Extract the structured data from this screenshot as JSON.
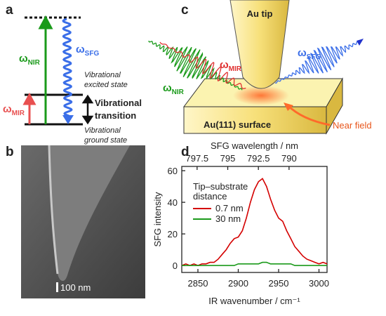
{
  "panels": {
    "a": {
      "label": "a",
      "nir": {
        "symbol": "ω",
        "sub": "NIR"
      },
      "sfg": {
        "symbol": "ω",
        "sub": "SFG"
      },
      "mir": {
        "symbol": "ω",
        "sub": "MIR"
      },
      "excited_state": [
        "Vibrational",
        "excited state"
      ],
      "transition": [
        "Vibrational",
        "transition"
      ],
      "ground_state": [
        "Vibrational",
        "ground state"
      ]
    },
    "b": {
      "label": "b",
      "scale_bar": "100 nm"
    },
    "c": {
      "label": "c",
      "tip": "Au tip",
      "surface": "Au(111) surface",
      "near_field": "Near field",
      "sfg": {
        "symbol": "ω",
        "sub": "SFG"
      },
      "mir": {
        "symbol": "ω",
        "sub": "MIR"
      },
      "nir": {
        "symbol": "ω",
        "sub": "NIR"
      }
    },
    "d": {
      "label": "d"
    }
  },
  "chart_data": {
    "type": "line",
    "x_label": "IR wavenumber / cm⁻¹",
    "y_label": "SFG intensity",
    "x2_label": "SFG wavelength / nm",
    "legend_title": [
      "Tip–substrate",
      "distance"
    ],
    "x": [
      2830,
      2835,
      2840,
      2845,
      2850,
      2855,
      2860,
      2865,
      2870,
      2875,
      2880,
      2885,
      2890,
      2895,
      2900,
      2905,
      2910,
      2915,
      2920,
      2925,
      2930,
      2935,
      2940,
      2945,
      2950,
      2955,
      2960,
      2965,
      2970,
      2975,
      2980,
      2985,
      2990,
      2995,
      3000,
      3005,
      3010
    ],
    "series": [
      {
        "name": "0.7 nm",
        "color": "#d40000",
        "values": [
          0,
          1,
          0,
          1,
          0,
          1,
          1,
          2,
          2,
          4,
          7,
          10,
          14,
          17,
          18,
          22,
          30,
          40,
          48,
          53,
          55,
          50,
          42,
          35,
          30,
          28,
          22,
          17,
          12,
          9,
          6,
          4,
          3,
          2,
          1,
          2,
          1
        ]
      },
      {
        "name": "30 nm",
        "color": "#1a9a1a",
        "values": [
          0,
          0,
          0,
          0,
          0,
          0,
          0,
          0,
          0,
          0,
          0,
          0,
          0,
          0,
          1,
          1,
          1,
          1,
          1,
          1,
          2,
          2,
          1,
          1,
          1,
          1,
          1,
          1,
          0,
          0,
          0,
          0,
          0,
          0,
          0,
          0,
          0
        ]
      }
    ],
    "xlim": [
      2830,
      3010
    ],
    "xticks": [
      2850,
      2900,
      2950,
      3000
    ],
    "ylim": [
      -4.4,
      62.7
    ],
    "yticks": [
      0,
      20,
      40,
      60
    ],
    "x2lim": [
      798.75,
      786.9
    ],
    "x2ticks": [
      797.5,
      795,
      792.5,
      790
    ]
  }
}
